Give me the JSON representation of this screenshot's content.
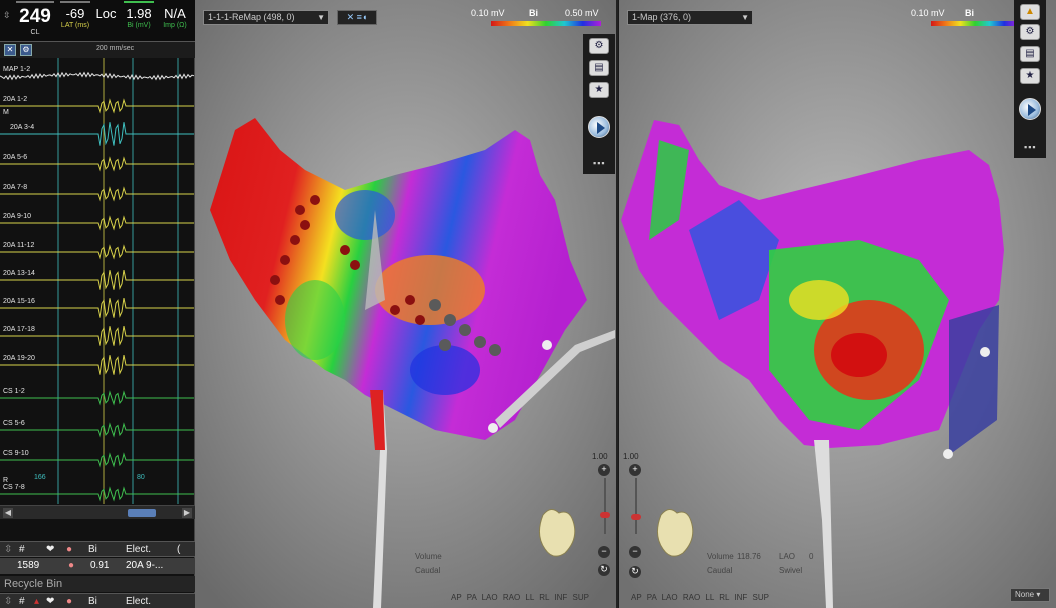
{
  "stats": {
    "cl": {
      "value": "249",
      "label": "CL"
    },
    "lat": {
      "value": "-69",
      "label": "LAT (ms)"
    },
    "loc": {
      "value": "Loc",
      "label": ""
    },
    "bi": {
      "value": "1.98",
      "label": "Bi (mV)"
    },
    "imp": {
      "value": "N/A",
      "label": "Imp (Ω)"
    }
  },
  "signals": {
    "speed": "200 mm/sec",
    "channels": [
      "MAP 1-2",
      "20A 1-2",
      "20A 3-4",
      "20A 5-6",
      "20A 7-8",
      "20A 9-10",
      "20A 11-12",
      "20A 13-14",
      "20A 15-16",
      "20A 17-18",
      "20A 19-20",
      "CS 1-2",
      "CS 5-6",
      "CS 9-10",
      "CS 7-8"
    ],
    "markers": {
      "m": "M",
      "r": "R",
      "a1": "166",
      "a2": "80"
    }
  },
  "point_list": {
    "headers": {
      "num": "#",
      "bi": "Bi",
      "elect": "Elect.",
      "more": "("
    },
    "row": {
      "num": "1589",
      "bi": "0.91",
      "elect": "20A 9-..."
    },
    "recycle_bin": "Recycle Bin",
    "headers2": {
      "num": "#",
      "bi": "Bi",
      "elect": "Elect."
    }
  },
  "view1": {
    "map_name": "1-1-1-ReMap (498, 0)",
    "scale": {
      "low": "0.10 mV",
      "mode": "Bi",
      "high": "0.50 mV"
    },
    "zoom": "1.00",
    "volume_label": "Volume",
    "volume_value": "",
    "caudal_label": "Caudal",
    "orientations": "AP PA LAO RAO LL RL INF SUP"
  },
  "view2": {
    "map_name": "1-Map (376, 0)",
    "scale": {
      "low": "0.10 mV",
      "mode": "Bi",
      "high": ""
    },
    "zoom": "1.00",
    "volume_label": "Volume",
    "volume_value": "118.76",
    "lao_label": "LAO",
    "lao_value": "0",
    "caudal_label": "Caudal",
    "swivel_label": "Swivel",
    "orientations": "AP PA LAO RAO LL RL INF SUP",
    "none_option": "None"
  },
  "colors": {
    "accent": "#3fbf4f",
    "lat": "#d8d24a",
    "panel": "#111111"
  }
}
